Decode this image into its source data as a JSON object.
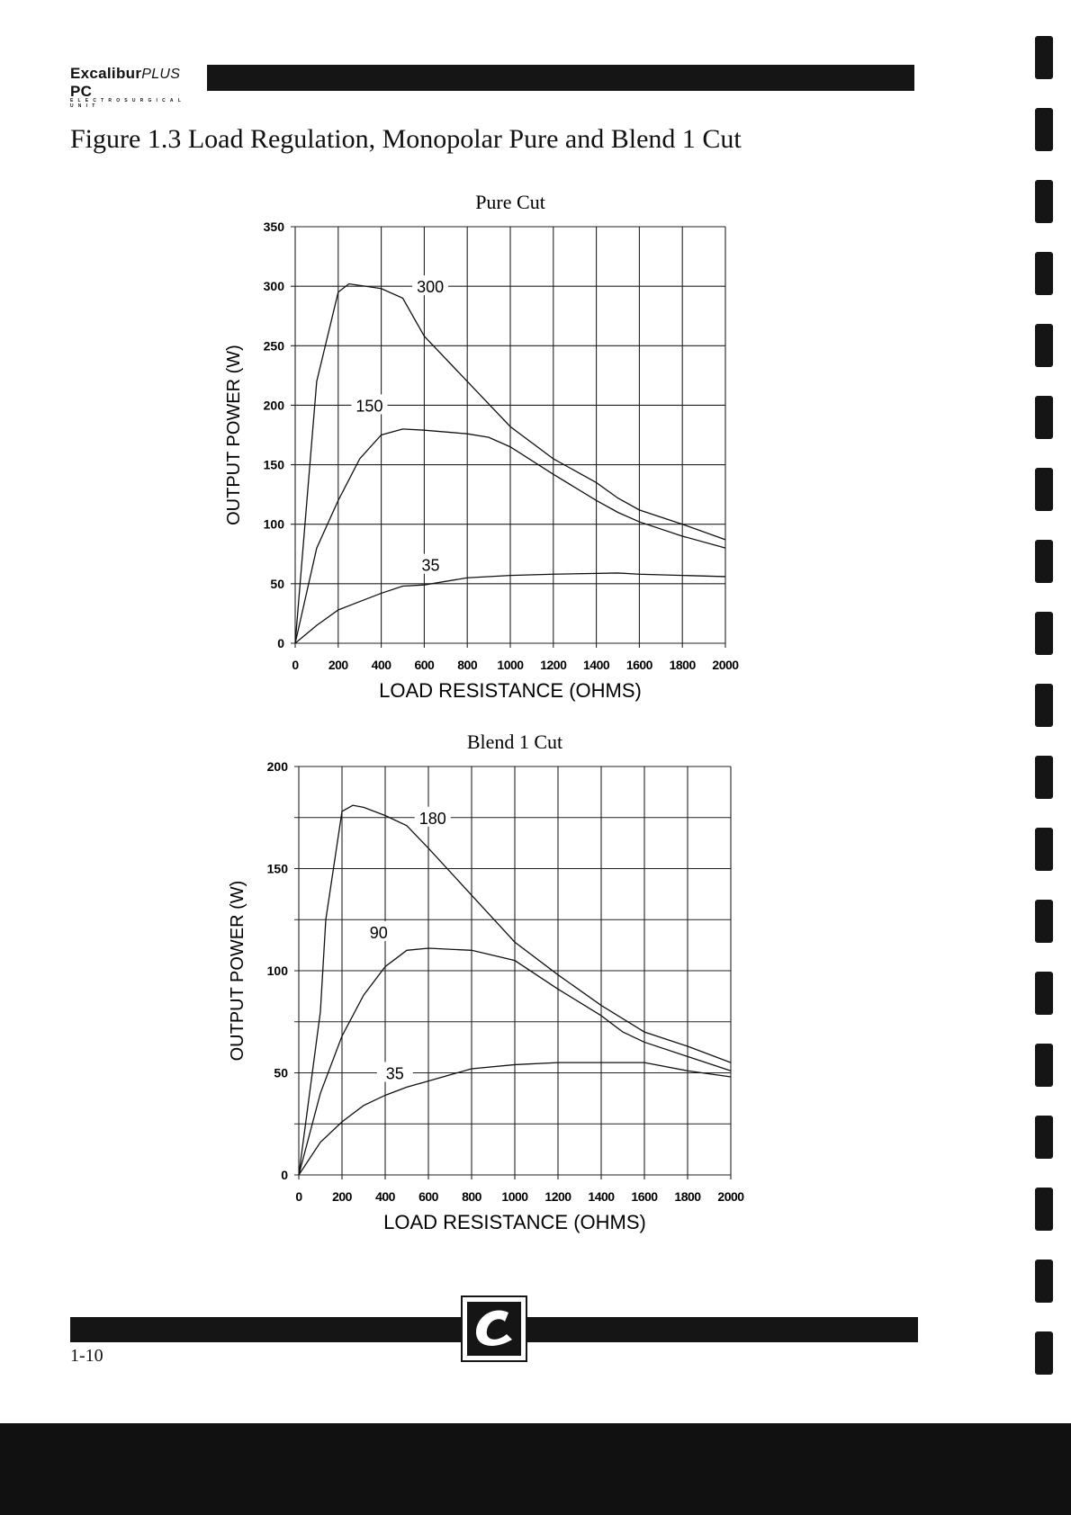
{
  "header": {
    "brand": "Excalibur",
    "brand_italic": "PLUS",
    "brand_suffix": "PC",
    "brand_sub": "ELECTROSURGICAL UNIT"
  },
  "figure_title": "Figure 1.3 Load Regulation, Monopolar Pure and Blend 1 Cut",
  "footer": {
    "page_number": "1-10"
  },
  "chart_data": [
    {
      "type": "line",
      "title": "Pure Cut",
      "xlabel": "LOAD RESISTANCE (OHMS)",
      "ylabel": "OUTPUT POWER (W)",
      "xlim": [
        0,
        2000
      ],
      "ylim": [
        0,
        350
      ],
      "xticks": [
        0,
        200,
        400,
        600,
        800,
        1000,
        1200,
        1400,
        1600,
        1800,
        2000
      ],
      "yticks": [
        0,
        50,
        100,
        150,
        200,
        250,
        300,
        350
      ],
      "ygrid_step": 50,
      "grid": true,
      "series": [
        {
          "name": "300",
          "label_at": [
            628,
            300
          ],
          "points": [
            [
              0,
              0
            ],
            [
              100,
              220
            ],
            [
              200,
              295
            ],
            [
              250,
              302
            ],
            [
              400,
              298
            ],
            [
              500,
              290
            ],
            [
              600,
              258
            ],
            [
              800,
              220
            ],
            [
              1000,
              182
            ],
            [
              1200,
              155
            ],
            [
              1400,
              135
            ],
            [
              1500,
              122
            ],
            [
              1600,
              112
            ],
            [
              1800,
              100
            ],
            [
              2000,
              87
            ]
          ]
        },
        {
          "name": "150",
          "label_at": [
            345,
            200
          ],
          "points": [
            [
              0,
              0
            ],
            [
              100,
              80
            ],
            [
              200,
              120
            ],
            [
              300,
              155
            ],
            [
              400,
              175
            ],
            [
              500,
              180
            ],
            [
              600,
              179
            ],
            [
              800,
              176
            ],
            [
              900,
              173
            ],
            [
              1000,
              165
            ],
            [
              1200,
              142
            ],
            [
              1400,
              120
            ],
            [
              1500,
              110
            ],
            [
              1600,
              102
            ],
            [
              1800,
              90
            ],
            [
              2000,
              80
            ]
          ]
        },
        {
          "name": "35",
          "label_at": [
            630,
            66
          ],
          "points": [
            [
              0,
              0
            ],
            [
              100,
              15
            ],
            [
              200,
              28
            ],
            [
              300,
              35
            ],
            [
              400,
              42
            ],
            [
              500,
              48
            ],
            [
              600,
              49
            ],
            [
              800,
              55
            ],
            [
              1000,
              57
            ],
            [
              1200,
              58
            ],
            [
              1500,
              59
            ],
            [
              1600,
              58
            ],
            [
              2000,
              56
            ]
          ]
        }
      ]
    },
    {
      "type": "line",
      "title": "Blend 1 Cut",
      "xlabel": "LOAD RESISTANCE (OHMS)",
      "ylabel": "OUTPUT POWER (W)",
      "xlim": [
        0,
        2000
      ],
      "ylim": [
        0,
        200
      ],
      "xticks": [
        0,
        200,
        400,
        600,
        800,
        1000,
        1200,
        1400,
        1600,
        1800,
        2000
      ],
      "yticks": [
        0,
        50,
        100,
        150,
        200
      ],
      "ygrid_step": 25,
      "grid": true,
      "series": [
        {
          "name": "180",
          "label_at": [
            620,
            175
          ],
          "points": [
            [
              0,
              0
            ],
            [
              100,
              80
            ],
            [
              125,
              125
            ],
            [
              200,
              178
            ],
            [
              250,
              181
            ],
            [
              300,
              180
            ],
            [
              400,
              176
            ],
            [
              500,
              171
            ],
            [
              600,
              160
            ],
            [
              800,
              137
            ],
            [
              1000,
              114
            ],
            [
              1200,
              98
            ],
            [
              1400,
              83
            ],
            [
              1600,
              70
            ],
            [
              1800,
              63
            ],
            [
              2000,
              55
            ]
          ]
        },
        {
          "name": "90",
          "label_at": [
            370,
            119
          ],
          "points": [
            [
              0,
              0
            ],
            [
              100,
              40
            ],
            [
              200,
              68
            ],
            [
              300,
              88
            ],
            [
              400,
              102
            ],
            [
              500,
              110
            ],
            [
              600,
              111
            ],
            [
              800,
              110
            ],
            [
              1000,
              105
            ],
            [
              1200,
              91
            ],
            [
              1400,
              78
            ],
            [
              1500,
              70
            ],
            [
              1600,
              65
            ],
            [
              1800,
              58
            ],
            [
              2000,
              51
            ]
          ]
        },
        {
          "name": "35",
          "label_at": [
            445,
            50
          ],
          "points": [
            [
              0,
              0
            ],
            [
              100,
              16
            ],
            [
              200,
              26
            ],
            [
              300,
              34
            ],
            [
              400,
              39
            ],
            [
              500,
              43
            ],
            [
              600,
              46
            ],
            [
              800,
              52
            ],
            [
              1000,
              54
            ],
            [
              1200,
              55
            ],
            [
              1600,
              55
            ],
            [
              1800,
              51
            ],
            [
              2000,
              48
            ]
          ]
        }
      ]
    }
  ]
}
